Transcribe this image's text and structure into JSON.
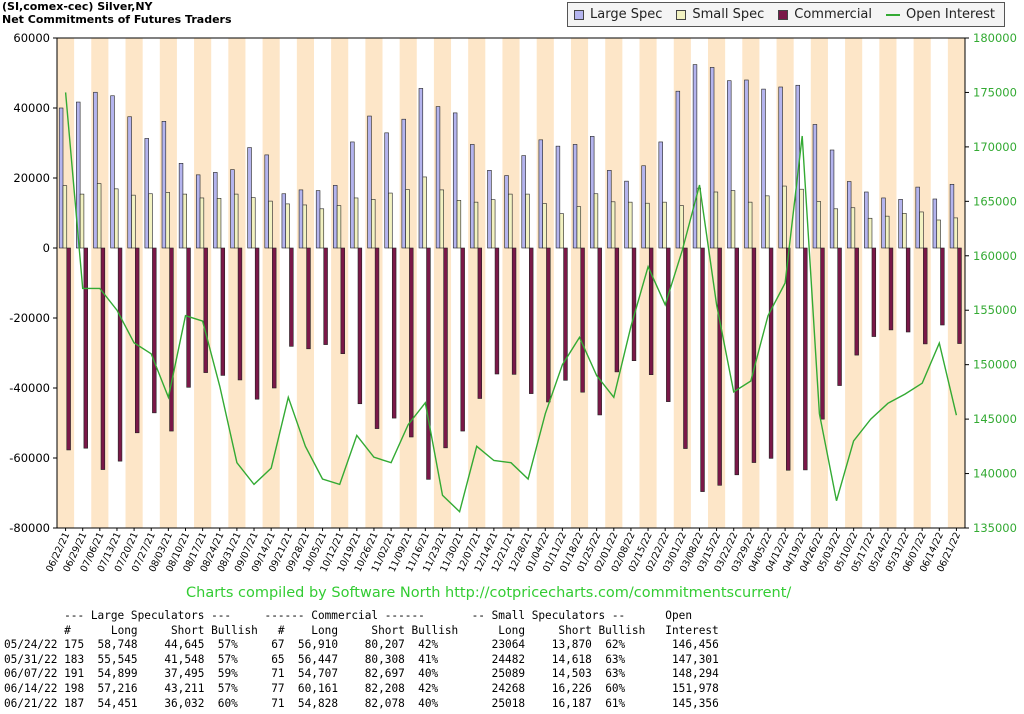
{
  "header": {
    "title_line1": "(SI,comex-cec) Silver,NY",
    "title_line2": "Net Commitments of Futures Traders"
  },
  "legend": {
    "items": [
      {
        "label": "Large Spec",
        "color": "#b4b4ee"
      },
      {
        "label": "Small Spec",
        "color": "#f2f2c2"
      },
      {
        "label": "Commercial",
        "color": "#7a1848"
      },
      {
        "label": "Open Interest",
        "color": "#33aa33"
      }
    ]
  },
  "credit": "Charts compiled by Software North  http://cotpricecharts.com/commitmentscurrent/",
  "chart_data": {
    "type": "bar",
    "categories": [
      "06/22/21",
      "06/29/21",
      "07/06/21",
      "07/13/21",
      "07/20/21",
      "07/27/21",
      "08/03/21",
      "08/10/21",
      "08/17/21",
      "08/24/21",
      "08/31/21",
      "09/07/21",
      "09/14/21",
      "09/21/21",
      "09/28/21",
      "10/05/21",
      "10/12/21",
      "10/19/21",
      "10/26/21",
      "11/02/21",
      "11/09/21",
      "11/16/21",
      "11/23/21",
      "11/30/21",
      "12/07/21",
      "12/14/21",
      "12/21/21",
      "12/28/21",
      "01/04/22",
      "01/11/22",
      "01/18/22",
      "01/25/22",
      "02/01/22",
      "02/08/22",
      "02/15/22",
      "02/22/22",
      "03/01/22",
      "03/08/22",
      "03/15/22",
      "03/22/22",
      "03/29/22",
      "04/05/22",
      "04/12/22",
      "04/19/22",
      "04/26/22",
      "05/03/22",
      "05/10/22",
      "05/17/22",
      "05/24/22",
      "05/31/22",
      "06/07/22",
      "06/14/22",
      "06/21/22"
    ],
    "y_left": {
      "min": -80000,
      "max": 60000,
      "ticks": [
        60000,
        40000,
        20000,
        0,
        -20000,
        -40000,
        -60000,
        -80000
      ]
    },
    "y_right": {
      "min": 135000,
      "max": 180000,
      "ticks": [
        180000,
        175000,
        170000,
        165000,
        160000,
        155000,
        150000,
        145000,
        140000,
        135000
      ]
    },
    "grid": false,
    "series": [
      {
        "name": "Large Spec",
        "color": "#b4b4ee",
        "values": [
          40000,
          41700,
          44500,
          43500,
          37500,
          31300,
          36200,
          24200,
          20900,
          21600,
          22400,
          28700,
          26600,
          15500,
          16600,
          16400,
          17900,
          30300,
          37700,
          32900,
          36800,
          45600,
          40400,
          38600,
          29600,
          22200,
          20700,
          26400,
          30900,
          29100,
          29600,
          31900,
          22200,
          19100,
          23500,
          30300,
          44800,
          52400,
          51600,
          47800,
          48000,
          45400,
          46000,
          46500,
          35300,
          28000,
          19000,
          16000,
          14300,
          13900,
          17400,
          14000,
          18200
        ]
      },
      {
        "name": "Small Spec",
        "color": "#f2f2c2",
        "values": [
          17800,
          15400,
          18400,
          16900,
          15100,
          15500,
          15900,
          15400,
          14300,
          14200,
          15400,
          14400,
          13400,
          12600,
          12300,
          11200,
          12100,
          14300,
          13900,
          15700,
          16700,
          20300,
          16600,
          13600,
          13100,
          13800,
          15400,
          15400,
          12700,
          9800,
          11800,
          15500,
          13200,
          13100,
          12800,
          13100,
          12100,
          17100,
          16000,
          16400,
          13100,
          14900,
          17700,
          16800,
          13300,
          11200,
          11500,
          8500,
          9100,
          9900,
          10300,
          8000,
          8600
        ]
      },
      {
        "name": "Commercial",
        "color": "#7a1848",
        "values": [
          -57700,
          -57200,
          -63300,
          -60900,
          -52800,
          -47100,
          -52300,
          -39800,
          -35600,
          -36400,
          -37700,
          -43200,
          -40000,
          -28100,
          -28800,
          -27600,
          -30200,
          -44500,
          -51600,
          -48600,
          -54000,
          -66100,
          -57100,
          -52300,
          -43000,
          -36000,
          -36100,
          -41600,
          -44000,
          -37800,
          -41200,
          -47700,
          -35400,
          -32200,
          -36200,
          -43900,
          -57300,
          -69600,
          -67800,
          -64800,
          -61300,
          -60100,
          -63500,
          -63400,
          -48900,
          -39300,
          -30600,
          -25300,
          -23400,
          -24000,
          -27400,
          -22000,
          -27300
        ]
      },
      {
        "name": "Open Interest",
        "color": "#33aa33",
        "axis": "right",
        "values": [
          175000,
          157000,
          157000,
          155000,
          152000,
          151000,
          147000,
          154500,
          154000,
          148000,
          141000,
          139000,
          140500,
          147000,
          142500,
          139500,
          139000,
          143500,
          141500,
          141000,
          144500,
          146500,
          138000,
          136500,
          142500,
          141200,
          141000,
          139500,
          145500,
          150000,
          152500,
          149000,
          147000,
          153500,
          159000,
          155500,
          160500,
          166500,
          155500,
          147500,
          148500,
          154500,
          157500,
          171000,
          145500,
          137500,
          143000,
          145000,
          146456,
          147301,
          148294,
          151978,
          145356
        ]
      }
    ]
  },
  "table": {
    "group_headers": {
      "large": "--- Large Speculators ---",
      "commercial": "------ Commercial ------",
      "small": "-- Small Speculators --",
      "open": "Open"
    },
    "col_headers": {
      "n1": "#",
      "long1": "Long",
      "short1": "Short",
      "bull1": "Bullish",
      "n2": "#",
      "long2": "Long",
      "short2": "Short",
      "bull2": "Bullish",
      "long3": "Long",
      "short3": "Short",
      "bull3": "Bullish",
      "oi": "Interest"
    },
    "rows": [
      {
        "date": "05/24/22",
        "ls_n": "175",
        "ls_long": "58,748",
        "ls_short": "44,645",
        "ls_bull": "57%",
        "c_n": "67",
        "c_long": "56,910",
        "c_short": "80,207",
        "c_bull": "42%",
        "ss_long": "23064",
        "ss_short": "13,870",
        "ss_bull": "62%",
        "oi": "146,456"
      },
      {
        "date": "05/31/22",
        "ls_n": "183",
        "ls_long": "55,545",
        "ls_short": "41,548",
        "ls_bull": "57%",
        "c_n": "65",
        "c_long": "56,447",
        "c_short": "80,308",
        "c_bull": "41%",
        "ss_long": "24482",
        "ss_short": "14,618",
        "ss_bull": "63%",
        "oi": "147,301"
      },
      {
        "date": "06/07/22",
        "ls_n": "191",
        "ls_long": "54,899",
        "ls_short": "37,495",
        "ls_bull": "59%",
        "c_n": "71",
        "c_long": "54,707",
        "c_short": "82,697",
        "c_bull": "40%",
        "ss_long": "25089",
        "ss_short": "14,503",
        "ss_bull": "63%",
        "oi": "148,294"
      },
      {
        "date": "06/14/22",
        "ls_n": "198",
        "ls_long": "57,216",
        "ls_short": "43,211",
        "ls_bull": "57%",
        "c_n": "77",
        "c_long": "60,161",
        "c_short": "82,208",
        "c_bull": "42%",
        "ss_long": "24268",
        "ss_short": "16,226",
        "ss_bull": "60%",
        "oi": "151,978"
      },
      {
        "date": "06/21/22",
        "ls_n": "187",
        "ls_long": "54,451",
        "ls_short": "36,032",
        "ls_bull": "60%",
        "c_n": "71",
        "c_long": "54,828",
        "c_short": "82,078",
        "c_bull": "40%",
        "ss_long": "25018",
        "ss_short": "16,187",
        "ss_bull": "61%",
        "oi": "145,356"
      }
    ]
  }
}
